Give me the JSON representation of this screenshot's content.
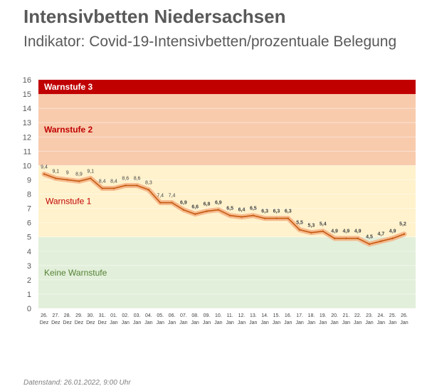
{
  "header": {
    "title": "Intensivbetten Niedersachsen",
    "subtitle": "Indikator: Covid-19-Intensivbetten/prozentuale Belegung"
  },
  "footer": {
    "note": "Datenstand: 26.01.2022, 9:00 Uhr"
  },
  "chart_data": {
    "type": "line",
    "ylim": [
      0,
      16
    ],
    "yticks": [
      "0",
      "1",
      "2",
      "3",
      "4",
      "5",
      "6",
      "7",
      "8",
      "9",
      "10",
      "11",
      "12",
      "13",
      "14",
      "15",
      "16"
    ],
    "x_day": [
      "26.",
      "27.",
      "28.",
      "29.",
      "30.",
      "31.",
      "01.",
      "02.",
      "03.",
      "04.",
      "05.",
      "06.",
      "07.",
      "08.",
      "09.",
      "10.",
      "11.",
      "12.",
      "13.",
      "14.",
      "15.",
      "16.",
      "17.",
      "18.",
      "19.",
      "20.",
      "21.",
      "22.",
      "23.",
      "24.",
      "25.",
      "26."
    ],
    "x_month": [
      "Dez",
      "Dez",
      "Dez",
      "Dez",
      "Dez",
      "Dez",
      "Jan",
      "Jan",
      "Jan",
      "Jan",
      "Jan",
      "Jan",
      "Jan",
      "Jan",
      "Jan",
      "Jan",
      "Jan",
      "Jan",
      "Jan",
      "Jan",
      "Jan",
      "Jan",
      "Jan",
      "Jan",
      "Jan",
      "Jan",
      "Jan",
      "Jan",
      "Jan",
      "Jan",
      "Jan",
      "Jan"
    ],
    "values": [
      9.4,
      9.1,
      9.0,
      8.9,
      9.1,
      8.4,
      8.4,
      8.6,
      8.6,
      8.3,
      7.4,
      7.4,
      6.9,
      6.6,
      6.8,
      6.9,
      6.5,
      6.4,
      6.5,
      6.3,
      6.3,
      6.3,
      5.5,
      5.3,
      5.4,
      4.9,
      4.9,
      4.9,
      4.5,
      4.7,
      4.9,
      5.2
    ],
    "labels": [
      "9,4",
      "9,1",
      "9",
      "8,9",
      "9,1",
      "8,4",
      "8,4",
      "8,6",
      "8,6",
      "8,3",
      "7,4",
      "7,4",
      "6,9",
      "6,6",
      "6,8",
      "6,9",
      "6,5",
      "6,4",
      "6,5",
      "6,3",
      "6,3",
      "6,3",
      "5,5",
      "5,3",
      "5,4",
      "4,9",
      "4,9",
      "4,9",
      "4,5",
      "4,7",
      "4,9",
      "5,2"
    ],
    "bands": [
      {
        "label": "Keine Warnstufe",
        "from": 0,
        "to": 5,
        "color": "#e2efda",
        "text_color": "#548235"
      },
      {
        "label": "Warnstufe 1",
        "from": 5,
        "to": 10,
        "color": "#fff2cc",
        "text_color": "#c00000"
      },
      {
        "label": "Warnstufe 2",
        "from": 10,
        "to": 15,
        "color": "#f8cbad",
        "text_color": "#c00000"
      },
      {
        "label": "Warnstufe 3",
        "from": 15,
        "to": 16,
        "color": "#c00000",
        "text_color": "#ffffff"
      }
    ],
    "line_color": "#c55a11",
    "grid": true
  }
}
